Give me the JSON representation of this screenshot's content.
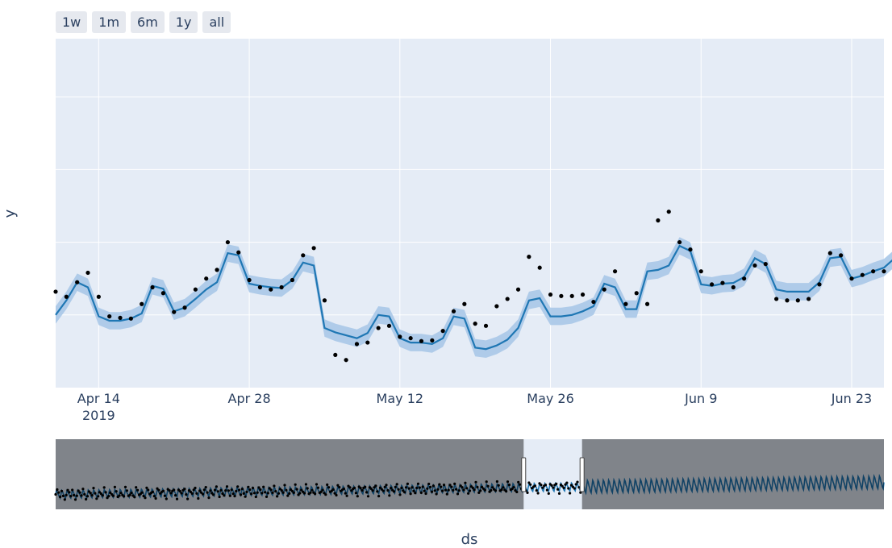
{
  "range_selector": {
    "buttons": [
      "1w",
      "1m",
      "6m",
      "1y",
      "all"
    ]
  },
  "chart_data": {
    "type": "line",
    "xlabel": "ds",
    "ylabel": "y",
    "x_range": [
      "2019-04-10",
      "2019-06-26"
    ],
    "x_tick_labels": [
      {
        "date": "2019-04-14",
        "label": "Apr 14",
        "sublabel": "2019"
      },
      {
        "date": "2019-04-28",
        "label": "Apr 28",
        "sublabel": ""
      },
      {
        "date": "2019-05-12",
        "label": "May 12",
        "sublabel": ""
      },
      {
        "date": "2019-05-26",
        "label": "May 26",
        "sublabel": ""
      },
      {
        "date": "2019-06-09",
        "label": "Jun 9",
        "sublabel": ""
      },
      {
        "date": "2019-06-23",
        "label": "Jun 23",
        "sublabel": ""
      }
    ],
    "y_range": [
      0,
      4.8
    ],
    "y_gridlines": [
      1,
      2,
      3,
      4
    ],
    "grid": true,
    "series": [
      {
        "kind": "forecast_line_with_interval",
        "color": "#1f77b4",
        "band_color": "#a9c8e8",
        "start_date": "2019-04-10",
        "values": [
          1.0,
          1.2,
          1.45,
          1.38,
          0.98,
          0.92,
          0.92,
          0.95,
          1.02,
          1.4,
          1.36,
          1.05,
          1.1,
          1.22,
          1.35,
          1.45,
          1.85,
          1.82,
          1.43,
          1.4,
          1.38,
          1.37,
          1.48,
          1.72,
          1.68,
          0.82,
          0.76,
          0.72,
          0.68,
          0.75,
          1.0,
          0.98,
          0.68,
          0.62,
          0.62,
          0.6,
          0.68,
          0.98,
          0.95,
          0.55,
          0.53,
          0.58,
          0.66,
          0.82,
          1.2,
          1.23,
          0.98,
          0.98,
          1.0,
          1.05,
          1.12,
          1.43,
          1.38,
          1.08,
          1.08,
          1.6,
          1.62,
          1.68,
          1.95,
          1.88,
          1.42,
          1.4,
          1.43,
          1.44,
          1.52,
          1.78,
          1.7,
          1.35,
          1.32,
          1.32,
          1.32,
          1.45,
          1.78,
          1.8,
          1.5,
          1.54,
          1.6,
          1.65,
          1.78
        ],
        "lower": [
          0.88,
          1.08,
          1.33,
          1.26,
          0.86,
          0.8,
          0.8,
          0.83,
          0.9,
          1.28,
          1.24,
          0.93,
          0.98,
          1.1,
          1.23,
          1.33,
          1.73,
          1.7,
          1.31,
          1.28,
          1.26,
          1.25,
          1.36,
          1.6,
          1.56,
          0.7,
          0.64,
          0.6,
          0.56,
          0.63,
          0.88,
          0.86,
          0.56,
          0.5,
          0.5,
          0.48,
          0.56,
          0.86,
          0.83,
          0.43,
          0.41,
          0.46,
          0.54,
          0.7,
          1.08,
          1.11,
          0.86,
          0.86,
          0.88,
          0.93,
          1.0,
          1.31,
          1.26,
          0.96,
          0.96,
          1.48,
          1.5,
          1.56,
          1.83,
          1.76,
          1.3,
          1.28,
          1.31,
          1.32,
          1.4,
          1.66,
          1.58,
          1.23,
          1.2,
          1.2,
          1.2,
          1.33,
          1.66,
          1.68,
          1.38,
          1.42,
          1.48,
          1.53,
          1.66
        ],
        "upper": [
          1.12,
          1.32,
          1.57,
          1.5,
          1.1,
          1.04,
          1.04,
          1.07,
          1.14,
          1.52,
          1.48,
          1.17,
          1.22,
          1.34,
          1.47,
          1.57,
          1.97,
          1.94,
          1.55,
          1.52,
          1.5,
          1.49,
          1.6,
          1.84,
          1.8,
          0.94,
          0.88,
          0.84,
          0.8,
          0.87,
          1.12,
          1.1,
          0.8,
          0.74,
          0.74,
          0.72,
          0.8,
          1.1,
          1.07,
          0.67,
          0.65,
          0.7,
          0.78,
          0.94,
          1.32,
          1.35,
          1.1,
          1.1,
          1.12,
          1.17,
          1.24,
          1.55,
          1.5,
          1.2,
          1.2,
          1.72,
          1.74,
          1.8,
          2.07,
          2.0,
          1.54,
          1.52,
          1.55,
          1.56,
          1.64,
          1.9,
          1.82,
          1.47,
          1.44,
          1.44,
          1.44,
          1.57,
          1.9,
          1.92,
          1.62,
          1.66,
          1.72,
          1.77,
          1.9
        ]
      },
      {
        "kind": "actual_points",
        "color": "#000000",
        "points": [
          [
            "2019-04-10",
            1.32
          ],
          [
            "2019-04-11",
            1.25
          ],
          [
            "2019-04-12",
            1.45
          ],
          [
            "2019-04-13",
            1.58
          ],
          [
            "2019-04-14",
            1.25
          ],
          [
            "2019-04-15",
            0.98
          ],
          [
            "2019-04-16",
            0.96
          ],
          [
            "2019-04-17",
            0.95
          ],
          [
            "2019-04-18",
            1.15
          ],
          [
            "2019-04-19",
            1.38
          ],
          [
            "2019-04-20",
            1.3
          ],
          [
            "2019-04-21",
            1.04
          ],
          [
            "2019-04-22",
            1.1
          ],
          [
            "2019-04-23",
            1.35
          ],
          [
            "2019-04-24",
            1.5
          ],
          [
            "2019-04-25",
            1.62
          ],
          [
            "2019-04-26",
            2.0
          ],
          [
            "2019-04-27",
            1.86
          ],
          [
            "2019-04-28",
            1.48
          ],
          [
            "2019-04-29",
            1.38
          ],
          [
            "2019-04-30",
            1.35
          ],
          [
            "2019-05-01",
            1.38
          ],
          [
            "2019-05-02",
            1.48
          ],
          [
            "2019-05-03",
            1.82
          ],
          [
            "2019-05-04",
            1.92
          ],
          [
            "2019-05-05",
            1.2
          ],
          [
            "2019-05-06",
            0.45
          ],
          [
            "2019-05-07",
            0.38
          ],
          [
            "2019-05-08",
            0.6
          ],
          [
            "2019-05-09",
            0.62
          ],
          [
            "2019-05-10",
            0.82
          ],
          [
            "2019-05-11",
            0.85
          ],
          [
            "2019-05-12",
            0.7
          ],
          [
            "2019-05-13",
            0.68
          ],
          [
            "2019-05-14",
            0.64
          ],
          [
            "2019-05-15",
            0.65
          ],
          [
            "2019-05-16",
            0.78
          ],
          [
            "2019-05-17",
            1.05
          ],
          [
            "2019-05-18",
            1.15
          ],
          [
            "2019-05-19",
            0.88
          ],
          [
            "2019-05-20",
            0.85
          ],
          [
            "2019-05-21",
            1.12
          ],
          [
            "2019-05-22",
            1.22
          ],
          [
            "2019-05-23",
            1.35
          ],
          [
            "2019-05-24",
            1.8
          ],
          [
            "2019-05-25",
            1.65
          ],
          [
            "2019-05-26",
            1.28
          ],
          [
            "2019-05-27",
            1.26
          ],
          [
            "2019-05-28",
            1.26
          ],
          [
            "2019-05-29",
            1.28
          ],
          [
            "2019-05-30",
            1.18
          ],
          [
            "2019-05-31",
            1.35
          ],
          [
            "2019-06-01",
            1.6
          ],
          [
            "2019-06-02",
            1.15
          ],
          [
            "2019-06-03",
            1.3
          ],
          [
            "2019-06-04",
            1.15
          ],
          [
            "2019-06-05",
            2.3
          ],
          [
            "2019-06-06",
            2.42
          ],
          [
            "2019-06-07",
            2.0
          ],
          [
            "2019-06-08",
            1.9
          ],
          [
            "2019-06-09",
            1.6
          ],
          [
            "2019-06-10",
            1.42
          ],
          [
            "2019-06-11",
            1.44
          ],
          [
            "2019-06-12",
            1.38
          ],
          [
            "2019-06-13",
            1.5
          ],
          [
            "2019-06-14",
            1.68
          ],
          [
            "2019-06-15",
            1.7
          ],
          [
            "2019-06-16",
            1.22
          ],
          [
            "2019-06-17",
            1.2
          ],
          [
            "2019-06-18",
            1.2
          ],
          [
            "2019-06-19",
            1.22
          ],
          [
            "2019-06-20",
            1.42
          ],
          [
            "2019-06-21",
            1.85
          ],
          [
            "2019-06-22",
            1.82
          ],
          [
            "2019-06-23",
            1.5
          ],
          [
            "2019-06-24",
            1.55
          ],
          [
            "2019-06-25",
            1.6
          ],
          [
            "2019-06-26",
            1.6
          ]
        ]
      }
    ],
    "range_slider": {
      "full_range": [
        "2017-08-01",
        "2020-07-28"
      ],
      "selected_range": [
        "2019-04-10",
        "2019-06-26"
      ]
    }
  }
}
